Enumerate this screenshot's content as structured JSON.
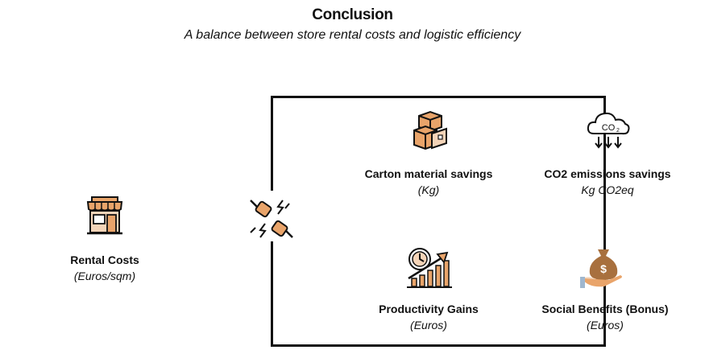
{
  "header": {
    "title": "Conclusion",
    "subtitle": "A balance between store rental costs and logistic efficiency"
  },
  "left": {
    "label": "Rental Costs",
    "unit": "(Euros/sqm)",
    "icon": "store-icon"
  },
  "center": {
    "icon": "fist-bump-icon"
  },
  "items": [
    {
      "label": "Carton material savings",
      "unit": "(Kg)",
      "icon": "boxes-icon"
    },
    {
      "label": "CO2 emissions savings",
      "unit": "Kg CO2eq",
      "icon": "co2-cloud-icon"
    },
    {
      "label": "Productivity Gains",
      "unit": "(Euros)",
      "icon": "clock-growth-chart-icon"
    },
    {
      "label": "Social Benefits (Bonus)",
      "unit": "(Euros)",
      "icon": "money-bag-hand-icon"
    }
  ],
  "colors": {
    "accent": "#E9A46A",
    "dark": "#111111"
  }
}
